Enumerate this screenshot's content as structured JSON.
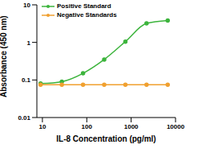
{
  "chart_data": {
    "type": "line",
    "x_label": "IL-8 Concentration (pg/ml)",
    "y_label": "Absorbance (450 nm)",
    "log": true,
    "xlim": [
      7.5,
      10000
    ],
    "xticks": [
      10,
      100,
      1000,
      10000
    ],
    "ylim": [
      0.01,
      10
    ],
    "yticks": [
      0.01,
      0.1,
      1,
      10
    ],
    "legend": "upper left",
    "x": [
      9.1,
      27.4,
      82.3,
      247,
      741,
      2222,
      6667
    ],
    "series": [
      {
        "name": "Positive Standard",
        "color": "#3cb43c",
        "marker": "circle",
        "values": [
          0.08,
          0.09,
          0.15,
          0.35,
          1.05,
          3.2,
          3.8
        ]
      },
      {
        "name": "Negative Standards",
        "color": "#f0a030",
        "marker": "circle",
        "values": [
          0.075,
          0.075,
          0.075,
          0.075,
          0.075,
          0.075,
          0.075
        ]
      }
    ]
  }
}
